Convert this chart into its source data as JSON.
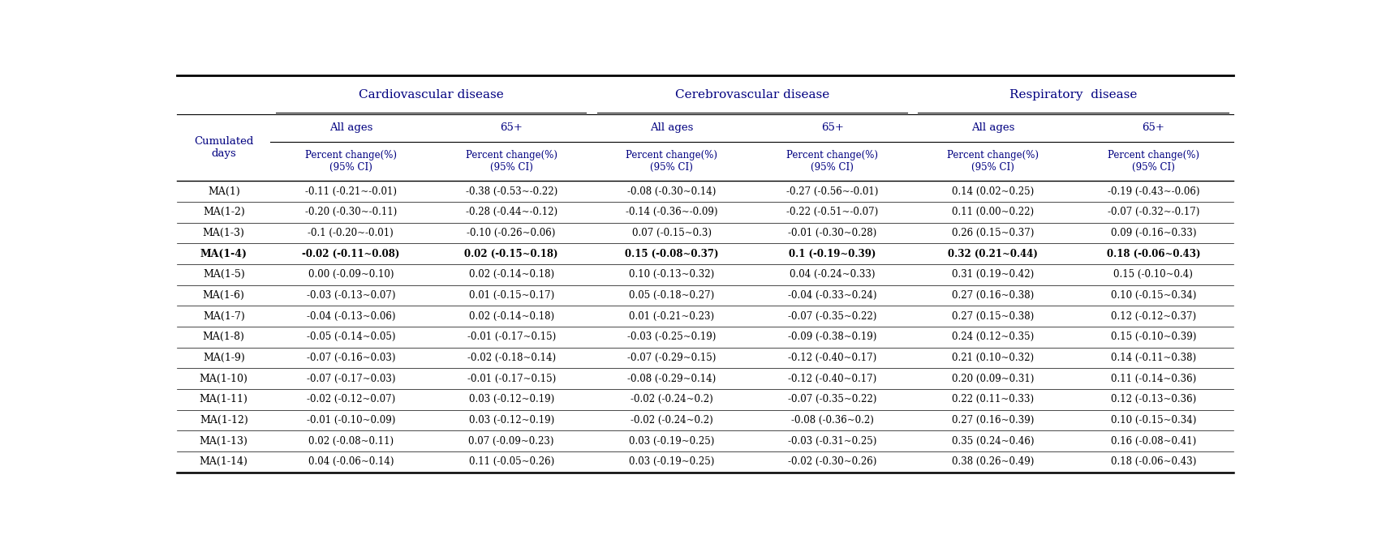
{
  "col_headers_level1": [
    "Cardiovascular disease",
    "Cerebrovascular disease",
    "Respiratory  disease"
  ],
  "col_headers_level2": [
    "All ages",
    "65+",
    "All ages",
    "65+",
    "All ages",
    "65+"
  ],
  "col_headers_level3": [
    "Percent change(%)\n(95% CI)",
    "Percent change(%)\n(95% CI)",
    "Percent change(%)\n(95% CI)",
    "Percent change(%)\n(95% CI)",
    "Percent change(%)\n(95% CI)",
    "Percent change(%)\n(95% CI)"
  ],
  "row_header": "Cumulated\ndays",
  "rows": [
    [
      "MA(1)",
      "-0.11 (-0.21~-0.01)",
      "-0.38 (-0.53~-0.22)",
      "-0.08 (-0.30~0.14)",
      "-0.27 (-0.56~-0.01)",
      "0.14 (0.02~0.25)",
      "-0.19 (-0.43~-0.06)"
    ],
    [
      "MA(1-2)",
      "-0.20 (-0.30~-0.11)",
      "-0.28 (-0.44~-0.12)",
      "-0.14 (-0.36~-0.09)",
      "-0.22 (-0.51~-0.07)",
      "0.11 (0.00~0.22)",
      "-0.07 (-0.32~-0.17)"
    ],
    [
      "MA(1-3)",
      "-0.1 (-0.20~-0.01)",
      "-0.10 (-0.26~0.06)",
      "0.07 (-0.15~0.3)",
      "-0.01 (-0.30~0.28)",
      "0.26 (0.15~0.37)",
      "0.09 (-0.16~0.33)"
    ],
    [
      "MA(1-4)",
      "-0.02 (-0.11~0.08)",
      "0.02 (-0.15~0.18)",
      "0.15 (-0.08~0.37)",
      "0.1 (-0.19~0.39)",
      "0.32 (0.21~0.44)",
      "0.18 (-0.06~0.43)"
    ],
    [
      "MA(1-5)",
      "0.00 (-0.09~0.10)",
      "0.02 (-0.14~0.18)",
      "0.10 (-0.13~0.32)",
      "0.04 (-0.24~0.33)",
      "0.31 (0.19~0.42)",
      "0.15 (-0.10~0.4)"
    ],
    [
      "MA(1-6)",
      "-0.03 (-0.13~0.07)",
      "0.01 (-0.15~0.17)",
      "0.05 (-0.18~0.27)",
      "-0.04 (-0.33~0.24)",
      "0.27 (0.16~0.38)",
      "0.10 (-0.15~0.34)"
    ],
    [
      "MA(1-7)",
      "-0.04 (-0.13~0.06)",
      "0.02 (-0.14~0.18)",
      "0.01 (-0.21~0.23)",
      "-0.07 (-0.35~0.22)",
      "0.27 (0.15~0.38)",
      "0.12 (-0.12~0.37)"
    ],
    [
      "MA(1-8)",
      "-0.05 (-0.14~0.05)",
      "-0.01 (-0.17~0.15)",
      "-0.03 (-0.25~0.19)",
      "-0.09 (-0.38~0.19)",
      "0.24 (0.12~0.35)",
      "0.15 (-0.10~0.39)"
    ],
    [
      "MA(1-9)",
      "-0.07 (-0.16~0.03)",
      "-0.02 (-0.18~0.14)",
      "-0.07 (-0.29~0.15)",
      "-0.12 (-0.40~0.17)",
      "0.21 (0.10~0.32)",
      "0.14 (-0.11~0.38)"
    ],
    [
      "MA(1-10)",
      "-0.07 (-0.17~0.03)",
      "-0.01 (-0.17~0.15)",
      "-0.08 (-0.29~0.14)",
      "-0.12 (-0.40~0.17)",
      "0.20 (0.09~0.31)",
      "0.11 (-0.14~0.36)"
    ],
    [
      "MA(1-11)",
      "-0.02 (-0.12~0.07)",
      "0.03 (-0.12~0.19)",
      "-0.02 (-0.24~0.2)",
      "-0.07 (-0.35~0.22)",
      "0.22 (0.11~0.33)",
      "0.12 (-0.13~0.36)"
    ],
    [
      "MA(1-12)",
      "-0.01 (-0.10~0.09)",
      "0.03 (-0.12~0.19)",
      "-0.02 (-0.24~0.2)",
      "-0.08 (-0.36~0.2)",
      "0.27 (0.16~0.39)",
      "0.10 (-0.15~0.34)"
    ],
    [
      "MA(1-13)",
      "0.02 (-0.08~0.11)",
      "0.07 (-0.09~0.23)",
      "0.03 (-0.19~0.25)",
      "-0.03 (-0.31~0.25)",
      "0.35 (0.24~0.46)",
      "0.16 (-0.08~0.41)"
    ],
    [
      "MA(1-14)",
      "0.04 (-0.06~0.14)",
      "0.11 (-0.05~0.26)",
      "0.03 (-0.19~0.25)",
      "-0.02 (-0.30~0.26)",
      "0.38 (0.26~0.49)",
      "0.18 (-0.06~0.43)"
    ]
  ],
  "bold_row_index": 3,
  "figure_width": 16.92,
  "figure_height": 6.65,
  "background_color": "#ffffff",
  "text_color": "#000000",
  "header_color": "#000080",
  "line_color": "#000000"
}
